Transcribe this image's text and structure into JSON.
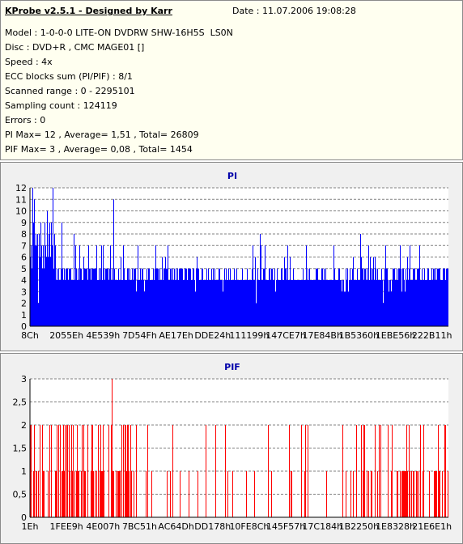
{
  "header": {
    "title": "KProbe v2.5.1 - Designed by Karr",
    "date": "Date : 11.07.2006 19:08:28"
  },
  "info_lines": [
    "Model : 1-0-0-0 LITE-ON DVDRW SHW-16H5S  LS0N",
    "Disc : DVD+R , CMC MAGE01 []",
    "Speed : 4x",
    "ECC blocks sum (PI/PIF) : 8/1",
    "Scanned range : 0 - 2295101",
    "Sampling count : 124119",
    "Errors : 0",
    "PI Max= 12 , Average= 1,51 , Total= 26809",
    "PIF Max= 3 , Average= 0,08 , Total= 1454"
  ],
  "chart_data": [
    {
      "type": "bar",
      "title": "PI",
      "color": "#0000ff",
      "y_ticks": [
        "0",
        "1",
        "2",
        "3",
        "4",
        "5",
        "6",
        "7",
        "8",
        "9",
        "10",
        "11",
        "12"
      ],
      "ylim": [
        0,
        12
      ],
      "grid": true,
      "x_ticks": [
        "8Ch",
        "2055Eh",
        "4E539h",
        "7D54Fh",
        "AE17Eh",
        "DDE24h",
        "111199h",
        "147CE7h",
        "17E84Bh",
        "1B5360h",
        "1EBE56h",
        "222B11h"
      ],
      "max": 12,
      "average": 1.51,
      "total": 26809,
      "baseline_values": [
        5,
        4
      ],
      "peaks": [
        {
          "x": 0.005,
          "y": 12
        },
        {
          "x": 0.01,
          "y": 11
        },
        {
          "x": 0.025,
          "y": 9
        },
        {
          "x": 0.04,
          "y": 10
        },
        {
          "x": 0.055,
          "y": 12
        },
        {
          "x": 0.075,
          "y": 9
        },
        {
          "x": 0.105,
          "y": 8
        },
        {
          "x": 0.2,
          "y": 11
        },
        {
          "x": 0.3,
          "y": 7
        },
        {
          "x": 0.55,
          "y": 8
        },
        {
          "x": 0.79,
          "y": 8
        },
        {
          "x": 0.93,
          "y": 7
        }
      ]
    },
    {
      "type": "bar",
      "title": "PIF",
      "color": "#ff0000",
      "y_ticks": [
        "0",
        "0,5",
        "1",
        "1,5",
        "2",
        "2,5",
        "3"
      ],
      "ylim": [
        0,
        3
      ],
      "grid": true,
      "x_ticks": [
        "1Eh",
        "1FEE9h",
        "4E007h",
        "7BC51h",
        "AC64Dh",
        "DD178h",
        "10FE8Ch",
        "145F57h",
        "17C184h",
        "1B2250h",
        "1E8328h",
        "21E6E1h"
      ],
      "max": 3,
      "average": 0.08,
      "total": 1454,
      "peaks": [
        {
          "x": 0.196,
          "y": 3
        }
      ]
    }
  ]
}
